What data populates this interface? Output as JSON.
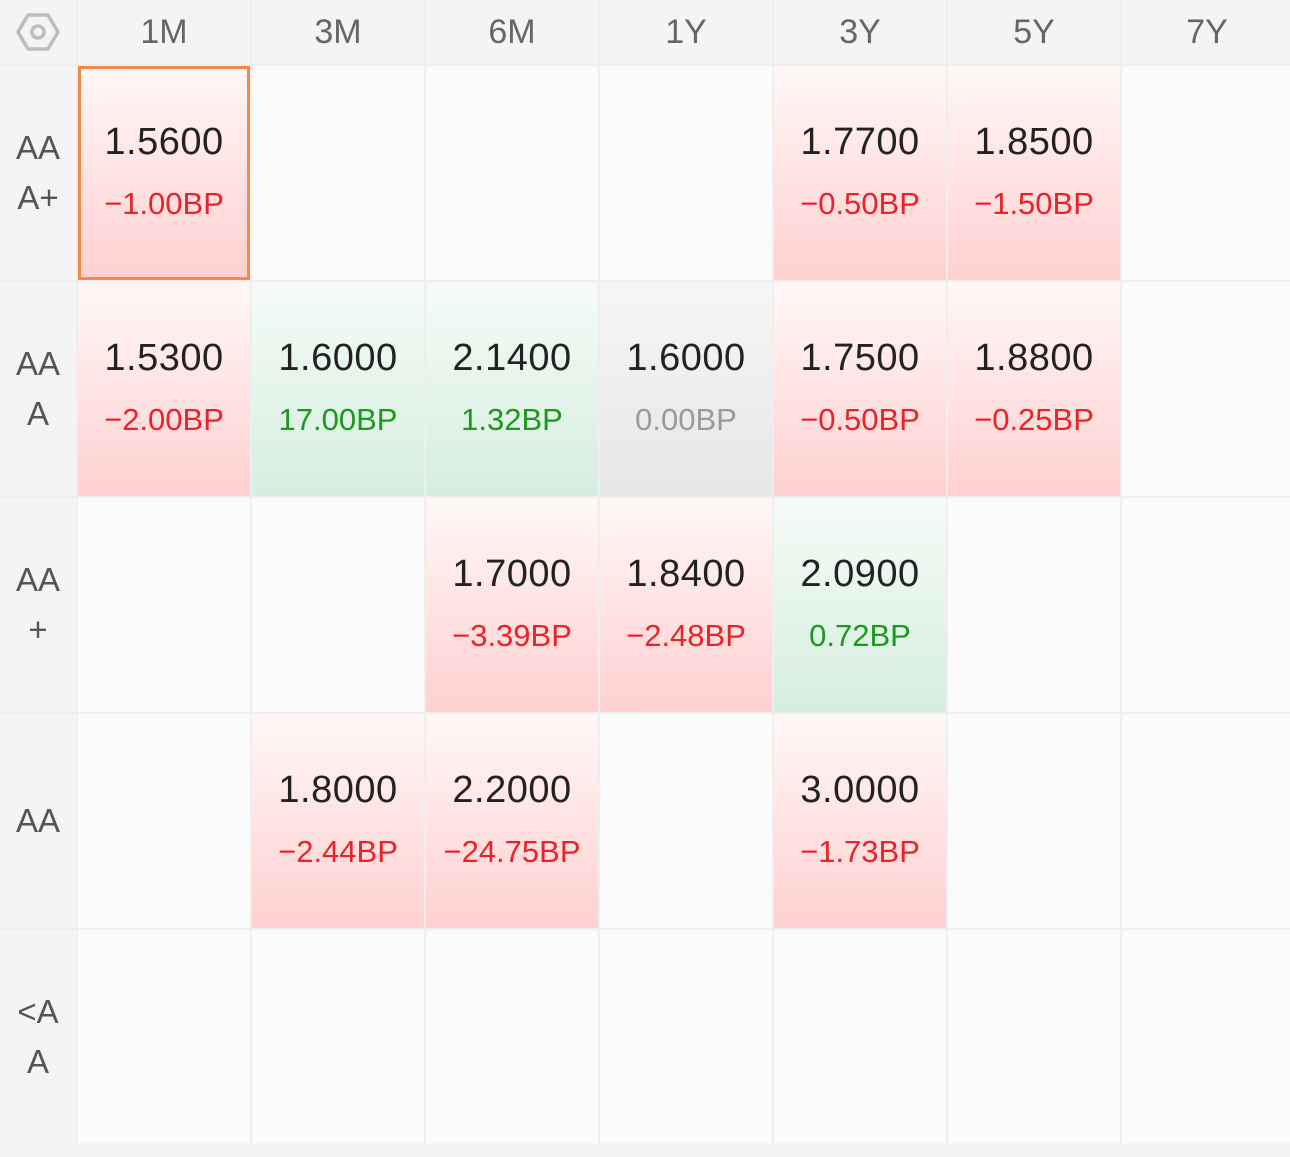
{
  "corner_icon": "hexagon-settings-icon",
  "columns": [
    "1M",
    "3M",
    "6M",
    "1Y",
    "3Y",
    "5Y",
    "7Y"
  ],
  "rows": [
    {
      "label": "AAA+",
      "cells": [
        {
          "rate": "1.5600",
          "change": "−1.00BP",
          "trend": "down",
          "selected": true
        },
        {
          "rate": "",
          "change": "",
          "trend": "empty"
        },
        {
          "rate": "",
          "change": "",
          "trend": "empty"
        },
        {
          "rate": "",
          "change": "",
          "trend": "empty"
        },
        {
          "rate": "1.7700",
          "change": "−0.50BP",
          "trend": "down"
        },
        {
          "rate": "1.8500",
          "change": "−1.50BP",
          "trend": "down"
        },
        {
          "rate": "",
          "change": "",
          "trend": "empty"
        }
      ]
    },
    {
      "label": "AAA",
      "cells": [
        {
          "rate": "1.5300",
          "change": "−2.00BP",
          "trend": "down"
        },
        {
          "rate": "1.6000",
          "change": "17.00BP",
          "trend": "up"
        },
        {
          "rate": "2.1400",
          "change": "1.32BP",
          "trend": "up"
        },
        {
          "rate": "1.6000",
          "change": "0.00BP",
          "trend": "flat"
        },
        {
          "rate": "1.7500",
          "change": "−0.50BP",
          "trend": "down"
        },
        {
          "rate": "1.8800",
          "change": "−0.25BP",
          "trend": "down"
        },
        {
          "rate": "",
          "change": "",
          "trend": "empty"
        }
      ]
    },
    {
      "label": "AA+",
      "cells": [
        {
          "rate": "",
          "change": "",
          "trend": "empty"
        },
        {
          "rate": "",
          "change": "",
          "trend": "empty"
        },
        {
          "rate": "1.7000",
          "change": "−3.39BP",
          "trend": "down"
        },
        {
          "rate": "1.8400",
          "change": "−2.48BP",
          "trend": "down"
        },
        {
          "rate": "2.0900",
          "change": "0.72BP",
          "trend": "up"
        },
        {
          "rate": "",
          "change": "",
          "trend": "empty"
        },
        {
          "rate": "",
          "change": "",
          "trend": "empty"
        }
      ]
    },
    {
      "label": "AA",
      "cells": [
        {
          "rate": "",
          "change": "",
          "trend": "empty"
        },
        {
          "rate": "1.8000",
          "change": "−2.44BP",
          "trend": "down"
        },
        {
          "rate": "2.2000",
          "change": "−24.75BP",
          "trend": "down"
        },
        {
          "rate": "",
          "change": "",
          "trend": "empty"
        },
        {
          "rate": "3.0000",
          "change": "−1.73BP",
          "trend": "down"
        },
        {
          "rate": "",
          "change": "",
          "trend": "empty"
        },
        {
          "rate": "",
          "change": "",
          "trend": "empty"
        }
      ]
    },
    {
      "label": "<AA",
      "cells": [
        {
          "rate": "",
          "change": "",
          "trend": "empty"
        },
        {
          "rate": "",
          "change": "",
          "trend": "empty"
        },
        {
          "rate": "",
          "change": "",
          "trend": "empty"
        },
        {
          "rate": "",
          "change": "",
          "trend": "empty"
        },
        {
          "rate": "",
          "change": "",
          "trend": "empty"
        },
        {
          "rate": "",
          "change": "",
          "trend": "empty"
        },
        {
          "rate": "",
          "change": "",
          "trend": "empty"
        }
      ]
    }
  ],
  "colors": {
    "negative": "#e8242a",
    "positive": "#1a9a1a",
    "neutral": "#9a9a9a",
    "selection": "#f0894a"
  }
}
